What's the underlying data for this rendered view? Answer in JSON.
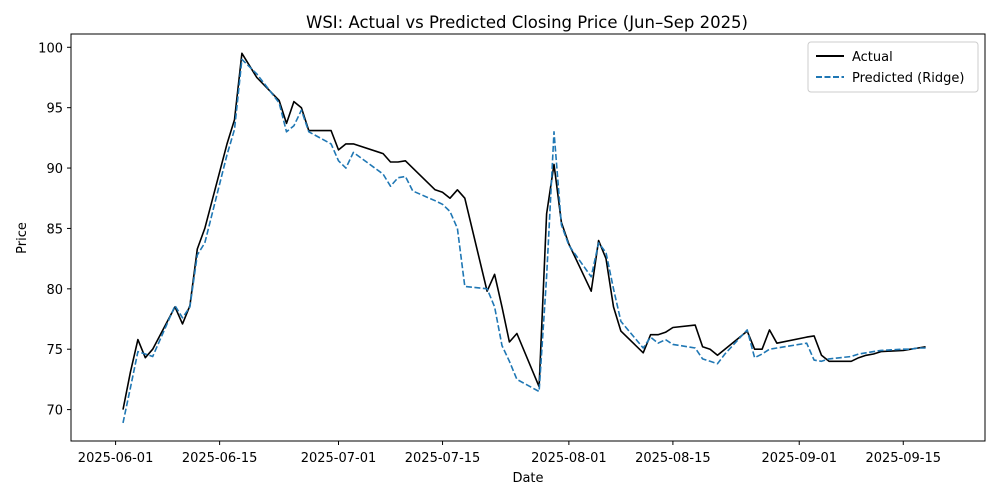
{
  "chart_data": {
    "type": "line",
    "title": "WSI: Actual vs Predicted Closing Price (Jun–Sep 2025)",
    "xlabel": "Date",
    "ylabel": "Price",
    "x_axis_type": "date",
    "xlim": [
      "2025-05-26",
      "2025-09-26"
    ],
    "ylim": [
      67.4,
      101.1
    ],
    "x_ticks": [
      "2025-06-01",
      "2025-06-15",
      "2025-07-01",
      "2025-07-15",
      "2025-08-01",
      "2025-08-15",
      "2025-09-01",
      "2025-09-15"
    ],
    "y_ticks": [
      70,
      75,
      80,
      85,
      90,
      95,
      100
    ],
    "grid": false,
    "legend_position": "top-right",
    "series": [
      {
        "name": "Actual",
        "color": "#000000",
        "style": "solid",
        "x": [
          "2025-06-02",
          "2025-06-03",
          "2025-06-04",
          "2025-06-05",
          "2025-06-06",
          "2025-06-09",
          "2025-06-10",
          "2025-06-11",
          "2025-06-12",
          "2025-06-13",
          "2025-06-16",
          "2025-06-17",
          "2025-06-18",
          "2025-06-20",
          "2025-06-23",
          "2025-06-24",
          "2025-06-25",
          "2025-06-26",
          "2025-06-27",
          "2025-06-30",
          "2025-07-01",
          "2025-07-02",
          "2025-07-03",
          "2025-07-07",
          "2025-07-08",
          "2025-07-09",
          "2025-07-10",
          "2025-07-11",
          "2025-07-14",
          "2025-07-15",
          "2025-07-16",
          "2025-07-17",
          "2025-07-18",
          "2025-07-21",
          "2025-07-22",
          "2025-07-23",
          "2025-07-24",
          "2025-07-25",
          "2025-07-28",
          "2025-07-29",
          "2025-07-30",
          "2025-07-31",
          "2025-08-01",
          "2025-08-04",
          "2025-08-05",
          "2025-08-06",
          "2025-08-07",
          "2025-08-08",
          "2025-08-11",
          "2025-08-12",
          "2025-08-13",
          "2025-08-14",
          "2025-08-15",
          "2025-08-18",
          "2025-08-19",
          "2025-08-20",
          "2025-08-21",
          "2025-08-22",
          "2025-08-25",
          "2025-08-26",
          "2025-08-27",
          "2025-08-28",
          "2025-08-29",
          "2025-09-02",
          "2025-09-03",
          "2025-09-04",
          "2025-09-05",
          "2025-09-08",
          "2025-09-09",
          "2025-09-10",
          "2025-09-11",
          "2025-09-12",
          "2025-09-15",
          "2025-09-16",
          "2025-09-17",
          "2025-09-18"
        ],
        "values": [
          70.0,
          73.1,
          75.8,
          74.3,
          75.0,
          78.5,
          77.1,
          78.6,
          83.3,
          85.0,
          92.0,
          94.0,
          99.5,
          97.5,
          95.6,
          93.7,
          95.5,
          95.0,
          93.1,
          93.1,
          91.5,
          92.0,
          92.0,
          91.2,
          90.5,
          90.5,
          90.6,
          90.0,
          88.2,
          88.0,
          87.5,
          88.2,
          87.5,
          79.8,
          81.2,
          78.5,
          75.6,
          76.3,
          71.9,
          86.2,
          90.3,
          85.5,
          83.7,
          79.8,
          84.0,
          82.5,
          78.5,
          76.5,
          74.7,
          76.2,
          76.2,
          76.4,
          76.8,
          77.0,
          75.2,
          75.0,
          74.5,
          75.0,
          76.5,
          75.0,
          75.0,
          76.6,
          75.5,
          76.0,
          76.1,
          74.5,
          74.0,
          74.0,
          74.3,
          74.5,
          74.6,
          74.8,
          74.9,
          75.0,
          75.1,
          75.2
        ]
      },
      {
        "name": "Predicted (Ridge)",
        "color": "#1f77b4",
        "style": "dashed",
        "x": [
          "2025-06-02",
          "2025-06-03",
          "2025-06-04",
          "2025-06-05",
          "2025-06-06",
          "2025-06-09",
          "2025-06-10",
          "2025-06-11",
          "2025-06-12",
          "2025-06-13",
          "2025-06-16",
          "2025-06-17",
          "2025-06-18",
          "2025-06-20",
          "2025-06-23",
          "2025-06-24",
          "2025-06-25",
          "2025-06-26",
          "2025-06-27",
          "2025-06-30",
          "2025-07-01",
          "2025-07-02",
          "2025-07-03",
          "2025-07-07",
          "2025-07-08",
          "2025-07-09",
          "2025-07-10",
          "2025-07-11",
          "2025-07-14",
          "2025-07-15",
          "2025-07-16",
          "2025-07-17",
          "2025-07-18",
          "2025-07-21",
          "2025-07-22",
          "2025-07-23",
          "2025-07-24",
          "2025-07-25",
          "2025-07-28",
          "2025-07-29",
          "2025-07-30",
          "2025-07-31",
          "2025-08-01",
          "2025-08-04",
          "2025-08-05",
          "2025-08-06",
          "2025-08-07",
          "2025-08-08",
          "2025-08-11",
          "2025-08-12",
          "2025-08-13",
          "2025-08-14",
          "2025-08-15",
          "2025-08-18",
          "2025-08-19",
          "2025-08-20",
          "2025-08-21",
          "2025-08-22",
          "2025-08-25",
          "2025-08-26",
          "2025-08-27",
          "2025-08-28",
          "2025-08-29",
          "2025-09-02",
          "2025-09-03",
          "2025-09-04",
          "2025-09-05",
          "2025-09-08",
          "2025-09-09",
          "2025-09-10",
          "2025-09-11",
          "2025-09-12",
          "2025-09-15",
          "2025-09-16",
          "2025-09-17",
          "2025-09-18"
        ],
        "values": [
          68.9,
          71.8,
          74.8,
          74.6,
          74.4,
          78.6,
          77.6,
          78.5,
          82.8,
          83.8,
          91.1,
          93.2,
          99.0,
          97.8,
          95.4,
          93.0,
          93.5,
          94.8,
          93.0,
          92.0,
          90.6,
          90.0,
          91.3,
          89.5,
          88.5,
          89.2,
          89.3,
          88.1,
          87.3,
          87.0,
          86.4,
          85.0,
          80.2,
          80.0,
          78.5,
          75.3,
          74.0,
          72.5,
          71.5,
          81.0,
          93.0,
          85.3,
          83.6,
          81.0,
          83.8,
          83.0,
          80.0,
          77.3,
          75.1,
          76.0,
          75.5,
          75.8,
          75.4,
          75.1,
          74.2,
          74.0,
          73.8,
          74.6,
          76.6,
          74.3,
          74.6,
          75.0,
          75.1,
          75.5,
          74.1,
          74.0,
          74.2,
          74.4,
          74.6,
          74.7,
          74.8,
          74.9,
          75.0,
          75.0,
          75.1,
          75.1
        ]
      }
    ]
  }
}
